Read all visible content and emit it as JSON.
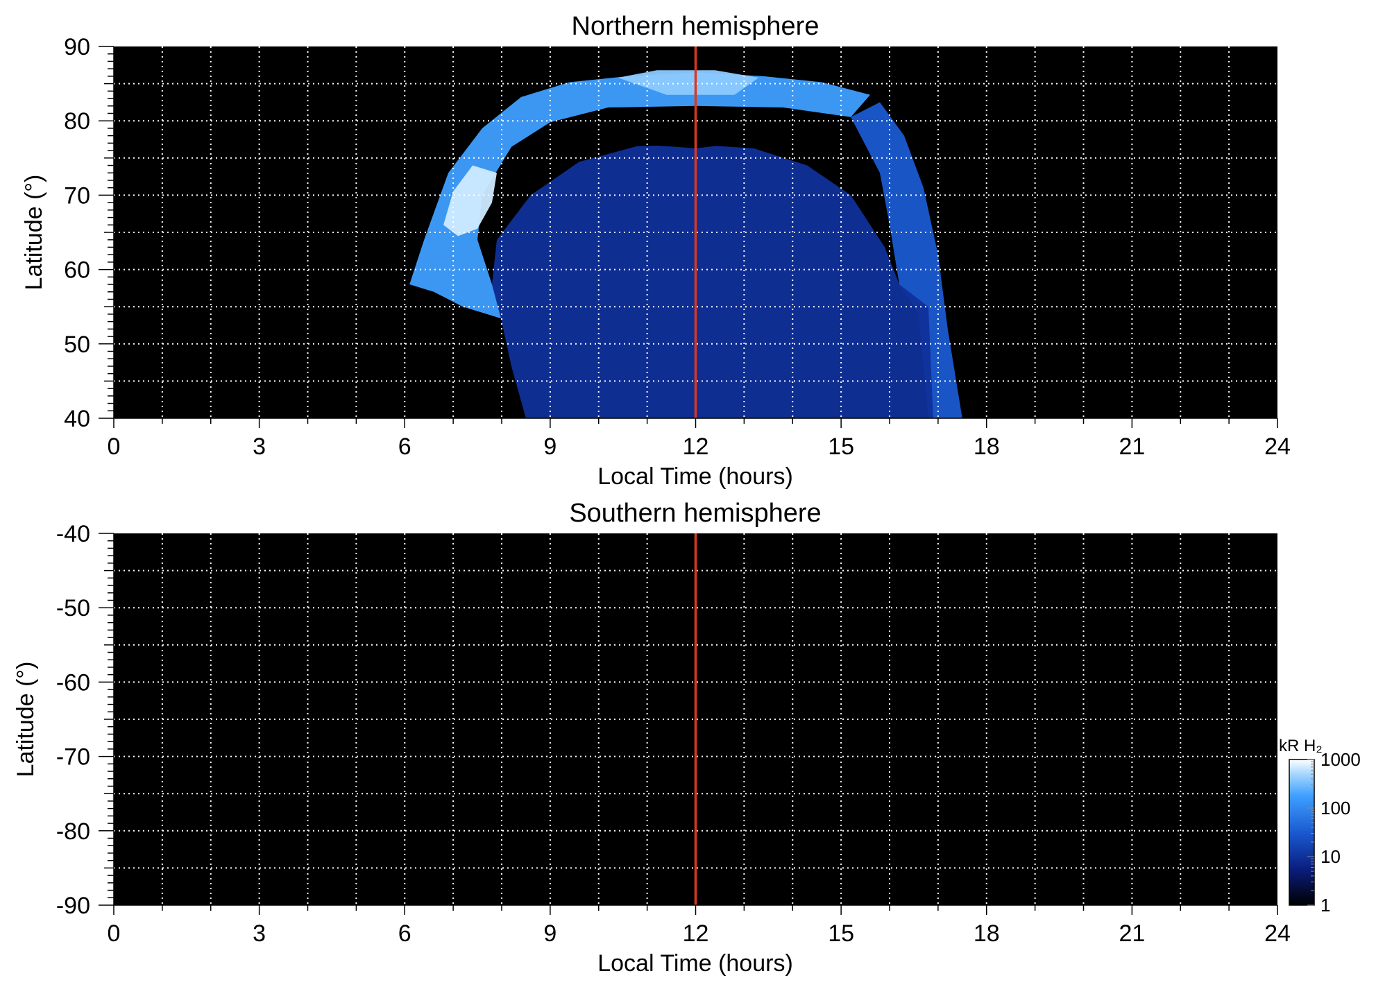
{
  "chart_data": [
    {
      "type": "heatmap",
      "title": "Northern hemisphere",
      "xlabel": "Local Time (hours)",
      "ylabel": "Latitude (°)",
      "xlim": [
        0,
        24
      ],
      "ylim": [
        40,
        90
      ],
      "x_ticks": [
        "0",
        "3",
        "6",
        "9",
        "12",
        "15",
        "18",
        "21",
        "24"
      ],
      "y_ticks": [
        "90",
        "80",
        "70",
        "60",
        "50",
        "40"
      ],
      "x_tick_values": [
        0,
        3,
        6,
        9,
        12,
        15,
        18,
        21,
        24
      ],
      "y_tick_values": [
        90,
        80,
        70,
        60,
        50,
        40
      ],
      "grid": true,
      "background_color": "#000000",
      "noon_line": {
        "x": 12,
        "color": "#d9381e"
      },
      "regions": [
        {
          "name": "bright auroral oval",
          "level_kR": 300,
          "color": "#3f9fff",
          "polygon": [
            [
              6.1,
              58
            ],
            [
              6.4,
              64
            ],
            [
              6.9,
              73
            ],
            [
              7.6,
              79
            ],
            [
              8.4,
              83.2
            ],
            [
              9.4,
              85.2
            ],
            [
              10.6,
              86
            ],
            [
              12,
              86.5
            ],
            [
              13.4,
              86
            ],
            [
              14.6,
              85.2
            ],
            [
              15.6,
              83.5
            ],
            [
              15.2,
              80.5
            ],
            [
              13.8,
              81.8
            ],
            [
              12,
              82
            ],
            [
              10.2,
              81.8
            ],
            [
              9,
              79.8
            ],
            [
              8.2,
              76.5
            ],
            [
              7.6,
              70
            ],
            [
              7.5,
              64
            ],
            [
              7.8,
              58
            ],
            [
              8,
              53.4
            ],
            [
              7.2,
              55
            ],
            [
              6.6,
              57
            ]
          ]
        },
        {
          "name": "brightest arc",
          "level_kR": 1000,
          "color": "#cfeaff",
          "polygon": [
            [
              6.8,
              66
            ],
            [
              7.0,
              70.5
            ],
            [
              7.4,
              74
            ],
            [
              7.9,
              73
            ],
            [
              7.8,
              69
            ],
            [
              7.5,
              65.5
            ],
            [
              7.1,
              64.5
            ]
          ]
        },
        {
          "name": "bright noon cap",
          "level_kR": 600,
          "color": "#8ccaff",
          "polygon": [
            [
              10.4,
              85.8
            ],
            [
              11.2,
              86.8
            ],
            [
              12.4,
              86.8
            ],
            [
              13.3,
              85.8
            ],
            [
              12.8,
              83.5
            ],
            [
              11.4,
              83.5
            ]
          ]
        },
        {
          "name": "dusk oval",
          "level_kR": 40,
          "color": "#1a5ad0",
          "polygon": [
            [
              15.2,
              80.5
            ],
            [
              15.8,
              82.5
            ],
            [
              16.3,
              78
            ],
            [
              16.7,
              71
            ],
            [
              17.0,
              62
            ],
            [
              17.2,
              52
            ],
            [
              17.5,
              40
            ],
            [
              16.8,
              40
            ],
            [
              16.6,
              54
            ],
            [
              16.2,
              58
            ],
            [
              16.0,
              66
            ],
            [
              15.8,
              73
            ]
          ]
        },
        {
          "name": "diffuse dayside emission",
          "level_kR": 10,
          "color": "#10309a",
          "polygon": [
            [
              7.8,
              58
            ],
            [
              7.9,
              64
            ],
            [
              8.6,
              70
            ],
            [
              9.6,
              74.5
            ],
            [
              10.8,
              76.6
            ],
            [
              12,
              76.8
            ],
            [
              13.2,
              76.3
            ],
            [
              14.3,
              74
            ],
            [
              15.2,
              70
            ],
            [
              15.9,
              63
            ],
            [
              16.2,
              58
            ],
            [
              16.8,
              55
            ],
            [
              16.9,
              40
            ],
            [
              8.5,
              40
            ],
            [
              8.2,
              47
            ],
            [
              8,
              53
            ]
          ]
        },
        {
          "name": "dark gap",
          "level_kR": 1,
          "color": "#000000",
          "polygon": [
            [
              10.0,
              79.5
            ],
            [
              10.4,
              77
            ],
            [
              11.6,
              76.5
            ],
            [
              12,
              76.3
            ],
            [
              12.4,
              76.6
            ],
            [
              13.8,
              78
            ],
            [
              14.6,
              80.5
            ],
            [
              13.2,
              80.4
            ],
            [
              12,
              80.7
            ],
            [
              11.2,
              80.3
            ]
          ]
        }
      ]
    },
    {
      "type": "heatmap",
      "title": "Southern hemisphere",
      "xlabel": "Local Time (hours)",
      "ylabel": "Latitude (°)",
      "xlim": [
        0,
        24
      ],
      "ylim": [
        -90,
        -40
      ],
      "x_ticks": [
        "0",
        "3",
        "6",
        "9",
        "12",
        "15",
        "18",
        "21",
        "24"
      ],
      "y_ticks": [
        "-40",
        "-50",
        "-60",
        "-70",
        "-80",
        "-90"
      ],
      "x_tick_values": [
        0,
        3,
        6,
        9,
        12,
        15,
        18,
        21,
        24
      ],
      "y_tick_values": [
        -40,
        -50,
        -60,
        -70,
        -80,
        -90
      ],
      "grid": true,
      "background_color": "#000000",
      "noon_line": {
        "x": 12,
        "color": "#d9381e"
      },
      "regions": []
    }
  ],
  "colorbar": {
    "label": "kR H₂",
    "scale": "log",
    "ticks": [
      "1000",
      "100",
      "10",
      "1"
    ],
    "tick_values": [
      1000,
      100,
      10,
      1
    ],
    "colors": [
      "#ffffff",
      "#a6d6ff",
      "#3f9fff",
      "#1a5ad0",
      "#0a1e80",
      "#000000"
    ]
  }
}
